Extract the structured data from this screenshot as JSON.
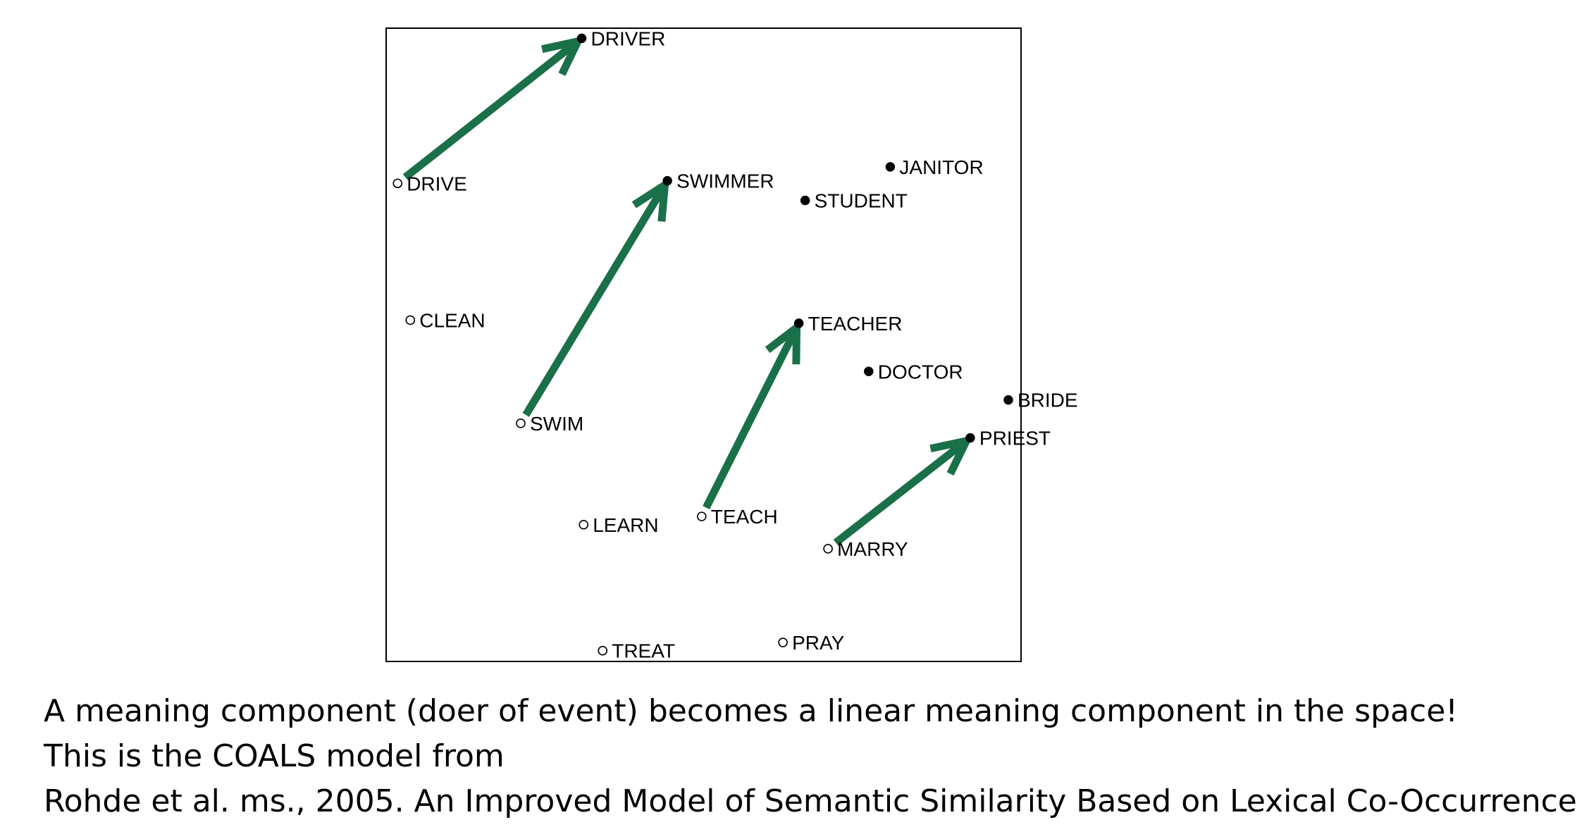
{
  "chart_data": {
    "type": "scatter",
    "title": "",
    "xlabel": "",
    "ylabel": "",
    "xlim": [
      0,
      100
    ],
    "ylim": [
      0,
      100
    ],
    "grid": false,
    "legend": "none",
    "points": [
      {
        "label": "DRIVER",
        "x": 30.8,
        "y": 98.4,
        "marker": "filled"
      },
      {
        "label": "DRIVE",
        "x": 1.8,
        "y": 75.5,
        "marker": "hollow"
      },
      {
        "label": "SWIMMER",
        "x": 44.3,
        "y": 75.9,
        "marker": "filled"
      },
      {
        "label": "JANITOR",
        "x": 79.4,
        "y": 78.1,
        "marker": "filled"
      },
      {
        "label": "STUDENT",
        "x": 66.0,
        "y": 72.8,
        "marker": "filled"
      },
      {
        "label": "CLEAN",
        "x": 3.8,
        "y": 53.9,
        "marker": "hollow"
      },
      {
        "label": "TEACHER",
        "x": 65.0,
        "y": 53.4,
        "marker": "filled"
      },
      {
        "label": "DOCTOR",
        "x": 76.0,
        "y": 45.8,
        "marker": "filled"
      },
      {
        "label": "BRIDE",
        "x": 98.0,
        "y": 41.3,
        "marker": "filled"
      },
      {
        "label": "SWIM",
        "x": 21.2,
        "y": 37.6,
        "marker": "hollow"
      },
      {
        "label": "PRIEST",
        "x": 92.0,
        "y": 35.3,
        "marker": "filled"
      },
      {
        "label": "LEARN",
        "x": 31.1,
        "y": 21.6,
        "marker": "hollow"
      },
      {
        "label": "TEACH",
        "x": 49.7,
        "y": 22.9,
        "marker": "hollow"
      },
      {
        "label": "MARRY",
        "x": 69.6,
        "y": 17.8,
        "marker": "hollow"
      },
      {
        "label": "TREAT",
        "x": 34.1,
        "y": 1.7,
        "marker": "hollow"
      },
      {
        "label": "PRAY",
        "x": 62.5,
        "y": 3.0,
        "marker": "hollow"
      }
    ],
    "arrows": [
      {
        "from": "DRIVE",
        "to": "DRIVER"
      },
      {
        "from": "SWIM",
        "to": "SWIMMER"
      },
      {
        "from": "TEACH",
        "to": "TEACHER"
      },
      {
        "from": "MARRY",
        "to": "PRIEST"
      }
    ],
    "colors": {
      "arrow": "#1a7048",
      "marker": "#000000",
      "frame": "#000000"
    }
  },
  "caption": {
    "line1": "A meaning component (doer of event) becomes a linear meaning component in the space!",
    "line2": "This is the COALS model from",
    "line3": "Rohde et al. ms., 2005. An Improved Model of Semantic Similarity Based on Lexical Co-Occurrence"
  }
}
